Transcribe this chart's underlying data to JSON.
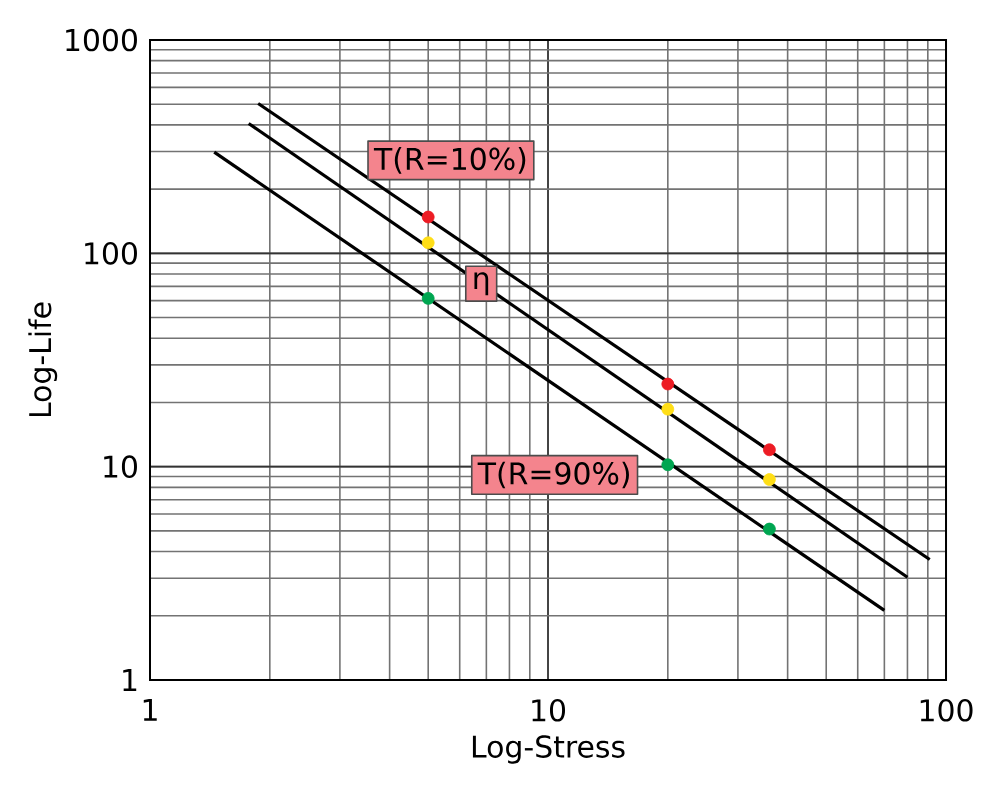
{
  "chart_data": {
    "type": "line",
    "xlabel": "Log-Stress",
    "ylabel": "Log-Life",
    "log": "xy",
    "grid": true,
    "xlim": [
      1,
      100
    ],
    "ylim": [
      1,
      1000
    ],
    "xticks": [
      1,
      10,
      100
    ],
    "yticks": [
      1,
      10,
      100,
      1000
    ],
    "series": [
      {
        "color": "#000000",
        "marker": "none",
        "x": [
          1.87,
          91
        ],
        "values": [
          504,
          3.67
        ]
      },
      {
        "color": "#000000",
        "marker": "none",
        "x": [
          1.77,
          80
        ],
        "values": [
          406,
          3.03
        ]
      },
      {
        "color": "#000000",
        "marker": "none",
        "x": [
          1.45,
          70
        ],
        "values": [
          298,
          2.12
        ]
      },
      {
        "type": "scatter",
        "color": "#ed1c24",
        "marker": "circle",
        "x": [
          5,
          20,
          36
        ],
        "values": [
          148,
          24.4,
          12
        ]
      },
      {
        "type": "scatter",
        "color": "#ffde17",
        "marker": "circle",
        "x": [
          5,
          20,
          36
        ],
        "values": [
          112,
          18.6,
          8.7
        ]
      },
      {
        "type": "scatter",
        "color": "#00a651",
        "marker": "circle",
        "x": [
          5,
          20,
          36
        ],
        "values": [
          61.5,
          10.2,
          5.1
        ]
      }
    ],
    "annotations": [
      "T(R=10%)",
      "η",
      "T(R=90%)"
    ]
  }
}
